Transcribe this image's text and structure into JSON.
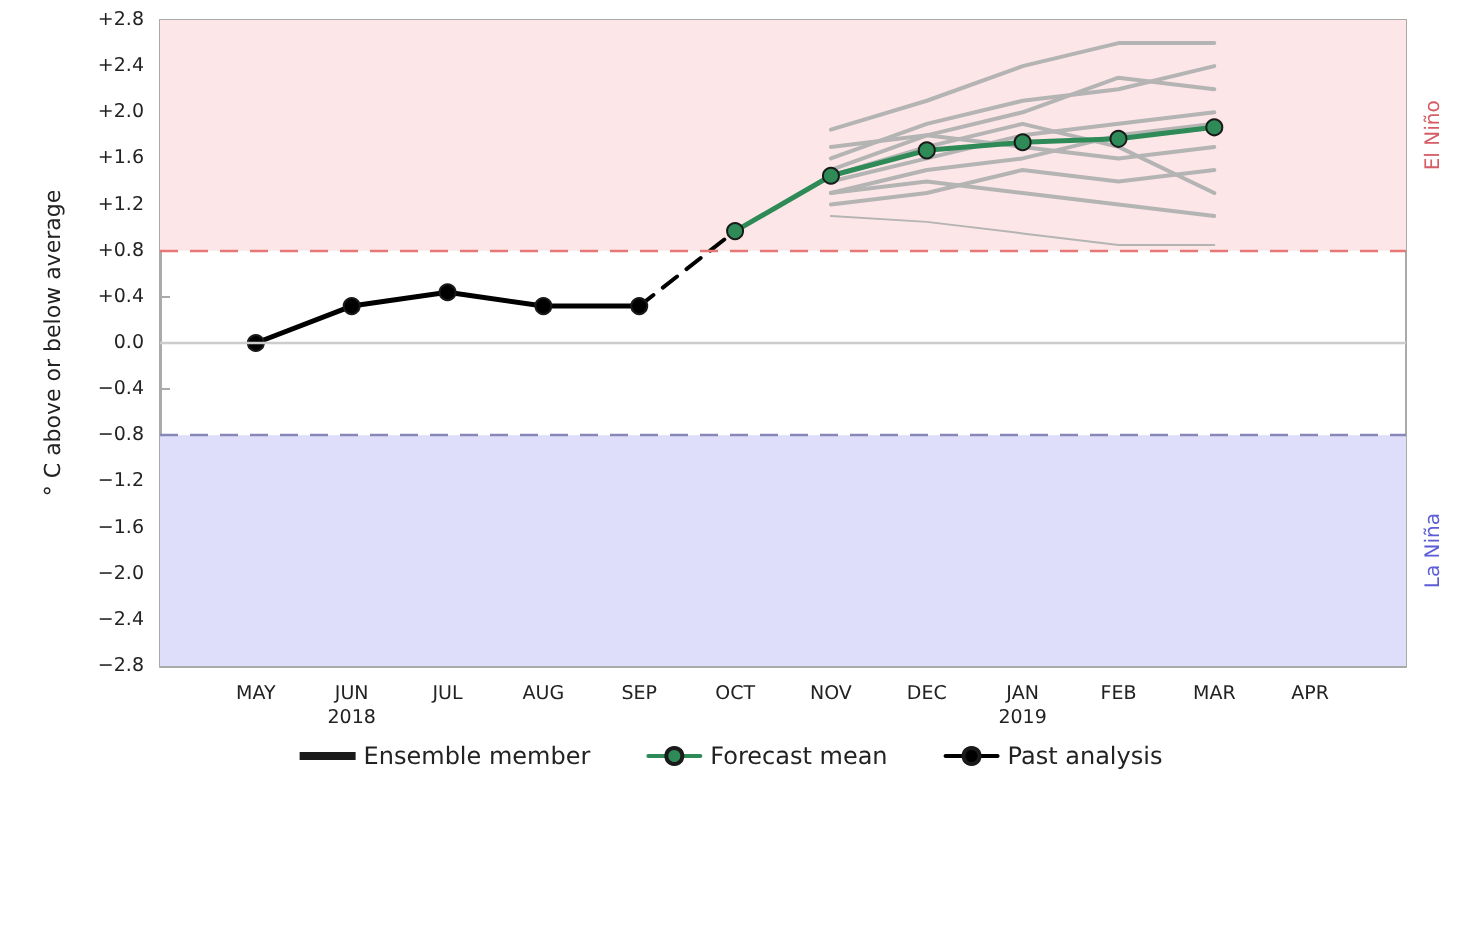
{
  "chart_data": {
    "type": "line",
    "ylabel": "° C above or below average",
    "categories": [
      null,
      "MAY",
      "JUN\n2018",
      "JUL",
      "AUG",
      "SEP",
      "OCT",
      "NOV",
      "DEC",
      "JAN\n2019",
      "FEB",
      "MAR",
      "APR",
      null
    ],
    "ylim": [
      -2.8,
      2.8
    ],
    "yticks": [
      {
        "value": -2.8,
        "label": "−2.8"
      },
      {
        "value": -2.4,
        "label": "−2.4"
      },
      {
        "value": -2.0,
        "label": "−2.0"
      },
      {
        "value": -1.6,
        "label": "−1.6"
      },
      {
        "value": -1.2,
        "label": "−1.2"
      },
      {
        "value": -0.8,
        "label": "−0.8"
      },
      {
        "value": -0.4,
        "label": "−0.4"
      },
      {
        "value": 0,
        "label": "0.0"
      },
      {
        "value": 0.4,
        "label": "+0.4"
      },
      {
        "value": 0.8,
        "label": "+0.8"
      },
      {
        "value": 1.2,
        "label": "+1.2"
      },
      {
        "value": 1.6,
        "label": "+1.6"
      },
      {
        "value": 2.0,
        "label": "+2.0"
      },
      {
        "value": 2.4,
        "label": "+2.4"
      },
      {
        "value": 2.8,
        "label": "+2.8"
      }
    ],
    "grid": false,
    "legend": "bottom",
    "series": [
      {
        "name": "Ensemble member",
        "color": "#b4b4b4",
        "marker": "none",
        "values": [
          null,
          null,
          null,
          null,
          null,
          null,
          null,
          1.1,
          1.05,
          0.95,
          0.85,
          0.85,
          null,
          null
        ]
      },
      {
        "color": "#b4b4b4",
        "marker": "none",
        "values": [
          null,
          null,
          null,
          null,
          null,
          null,
          null,
          1.85,
          2.1,
          2.4,
          2.6,
          2.6,
          null,
          null
        ]
      },
      {
        "color": "#b4b4b4",
        "marker": "none",
        "values": [
          null,
          null,
          null,
          null,
          null,
          null,
          null,
          1.3,
          1.4,
          1.3,
          1.2,
          1.1,
          null,
          null
        ]
      },
      {
        "color": "#b4b4b4",
        "marker": "none",
        "values": [
          null,
          null,
          null,
          null,
          null,
          null,
          null,
          1.6,
          1.9,
          2.1,
          2.2,
          2.4,
          null,
          null
        ]
      },
      {
        "color": "#b4b4b4",
        "marker": "none",
        "values": [
          null,
          null,
          null,
          null,
          null,
          null,
          null,
          1.4,
          1.6,
          1.8,
          1.9,
          2.0,
          null,
          null
        ]
      },
      {
        "color": "#b4b4b4",
        "marker": "none",
        "values": [
          null,
          null,
          null,
          null,
          null,
          null,
          null,
          1.2,
          1.3,
          1.5,
          1.4,
          1.5,
          null,
          null
        ]
      },
      {
        "color": "#b4b4b4",
        "marker": "none",
        "values": [
          null,
          null,
          null,
          null,
          null,
          null,
          null,
          1.5,
          1.8,
          1.7,
          1.6,
          1.7,
          null,
          null
        ]
      },
      {
        "color": "#b4b4b4",
        "marker": "none",
        "values": [
          null,
          null,
          null,
          null,
          null,
          null,
          null,
          1.7,
          1.8,
          2.0,
          2.3,
          2.2,
          null,
          null
        ]
      },
      {
        "color": "#b4b4b4",
        "marker": "none",
        "values": [
          null,
          null,
          null,
          null,
          null,
          null,
          null,
          1.3,
          1.5,
          1.6,
          1.8,
          1.9,
          null,
          null
        ]
      },
      {
        "color": "#b4b4b4",
        "marker": "none",
        "values": [
          null,
          null,
          null,
          null,
          null,
          null,
          null,
          1.45,
          1.7,
          1.9,
          1.7,
          1.3,
          null,
          null
        ]
      },
      {
        "color": "#000000",
        "marker": "none",
        "line_style": "dashed",
        "values": [
          null,
          null,
          null,
          null,
          null,
          0.32,
          0.97,
          null,
          null,
          null,
          null,
          null,
          null,
          null
        ]
      },
      {
        "name": "Forecast mean",
        "color": "#2e8b57",
        "marker": "circle",
        "values": [
          null,
          null,
          null,
          null,
          null,
          null,
          0.97,
          1.45,
          1.67,
          1.74,
          1.77,
          1.87,
          null,
          null
        ]
      },
      {
        "name": "Past analysis",
        "color": "#000000",
        "marker": "circle",
        "values": [
          null,
          0.0,
          0.32,
          0.44,
          0.32,
          0.32,
          null,
          null,
          null,
          null,
          null,
          null,
          null,
          null
        ]
      }
    ],
    "ref_lines": [
      {
        "axis": "y",
        "value": 0,
        "color": "#cccccc",
        "line_style": "solid"
      },
      {
        "axis": "y",
        "value": 0.8,
        "color": "#e87878",
        "line_style": "dashed"
      },
      {
        "axis": "y",
        "value": -0.8,
        "color": "#8888b8",
        "line_style": "dashed"
      }
    ],
    "bands": [
      {
        "axis": "y",
        "from": 0.8,
        "to": 2.8,
        "label": "El Niño",
        "color": "#fde6e8"
      },
      {
        "axis": "y",
        "from": -2.8,
        "to": -0.8,
        "label": "La Niña",
        "color": "#dedefa"
      }
    ]
  }
}
